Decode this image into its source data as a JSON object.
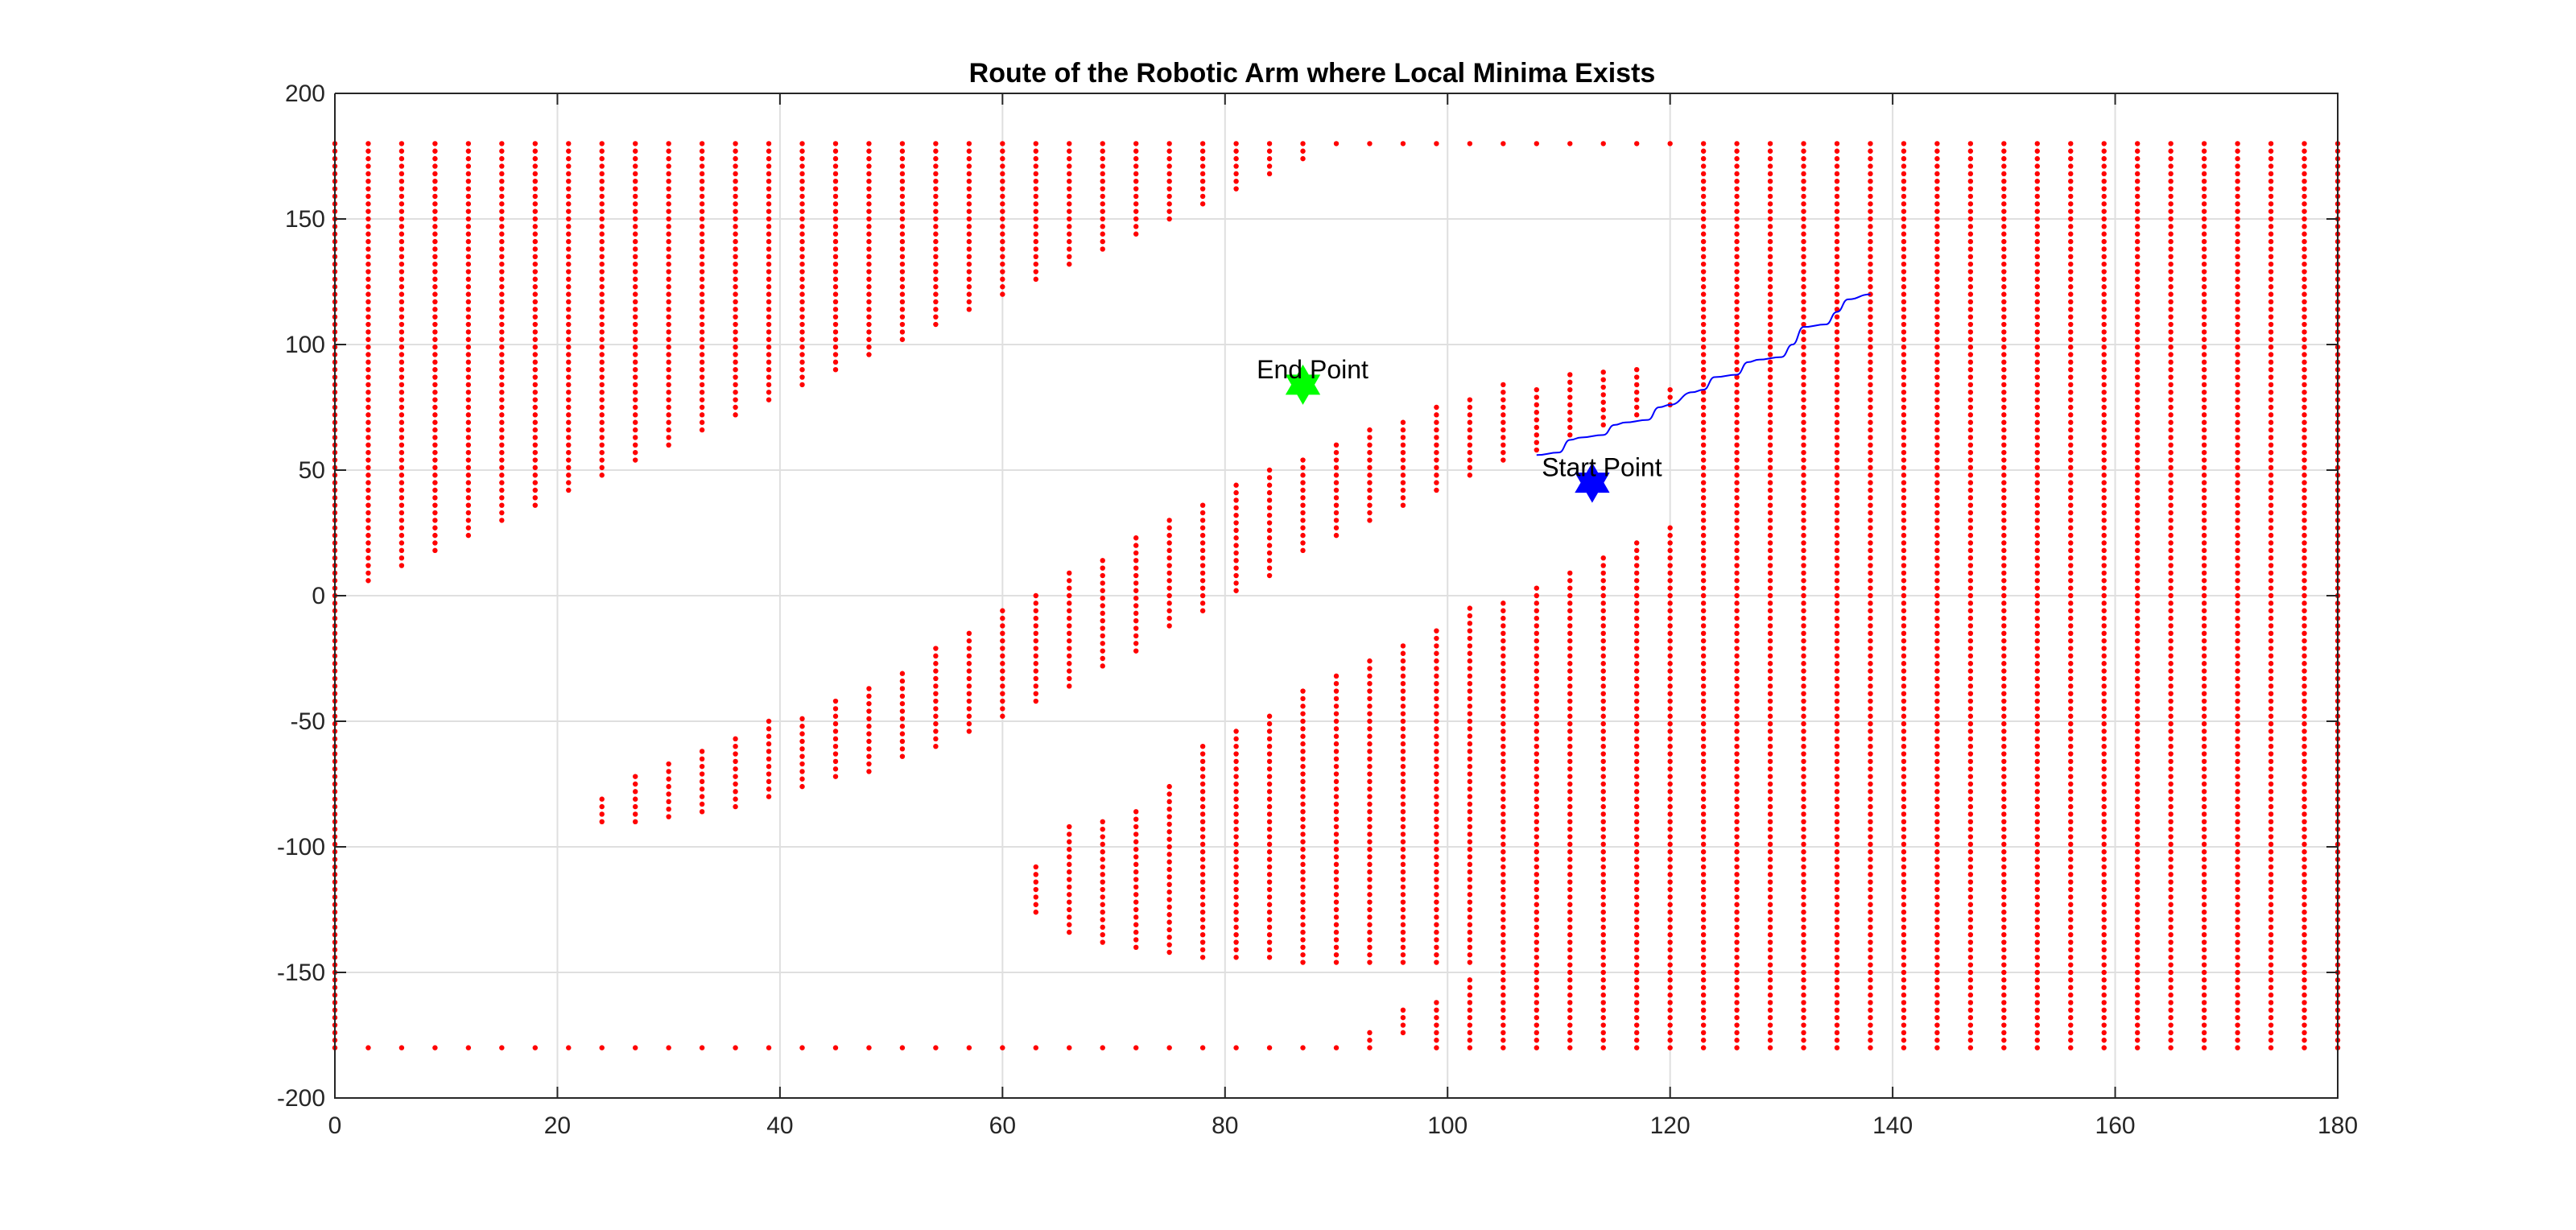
{
  "chart_data": {
    "type": "scatter",
    "title": "Route of the Robotic Arm where Local Minima Exists",
    "xlabel": "",
    "ylabel": "",
    "xlim": [
      0,
      180
    ],
    "ylim": [
      -200,
      200
    ],
    "xticks": [
      0,
      20,
      40,
      60,
      80,
      100,
      120,
      140,
      160,
      180
    ],
    "yticks": [
      -200,
      -150,
      -100,
      -50,
      0,
      50,
      100,
      150,
      200
    ],
    "grid": true,
    "colors": {
      "obstacle": "#ff0000",
      "route": "#0000ff",
      "start_marker": "#0000ff",
      "end_marker": "#00ff00"
    },
    "obstacle_columns": [
      {
        "x": 0,
        "ranges": [
          [
            -180,
            180
          ]
        ]
      },
      {
        "x": 3,
        "ranges": [
          [
            6,
            180
          ],
          [
            -180,
            -180
          ]
        ]
      },
      {
        "x": 6,
        "ranges": [
          [
            12,
            180
          ],
          [
            -180,
            -180
          ]
        ]
      },
      {
        "x": 9,
        "ranges": [
          [
            18,
            180
          ],
          [
            -180,
            -180
          ]
        ]
      },
      {
        "x": 12,
        "ranges": [
          [
            24,
            180
          ],
          [
            -180,
            -180
          ]
        ]
      },
      {
        "x": 15,
        "ranges": [
          [
            30,
            180
          ],
          [
            -180,
            -180
          ]
        ]
      },
      {
        "x": 18,
        "ranges": [
          [
            36,
            180
          ],
          [
            -180,
            -180
          ]
        ]
      },
      {
        "x": 21,
        "ranges": [
          [
            42,
            180
          ],
          [
            -180,
            -180
          ]
        ]
      },
      {
        "x": 24,
        "ranges": [
          [
            48,
            180
          ],
          [
            -90,
            -80
          ],
          [
            -180,
            -180
          ]
        ]
      },
      {
        "x": 27,
        "ranges": [
          [
            54,
            180
          ],
          [
            -90,
            -72
          ],
          [
            -180,
            -180
          ]
        ]
      },
      {
        "x": 30,
        "ranges": [
          [
            60,
            180
          ],
          [
            -88,
            -66
          ],
          [
            -180,
            -180
          ]
        ]
      },
      {
        "x": 33,
        "ranges": [
          [
            66,
            180
          ],
          [
            -86,
            -60
          ],
          [
            -180,
            -180
          ]
        ]
      },
      {
        "x": 36,
        "ranges": [
          [
            72,
            180
          ],
          [
            -84,
            -56
          ],
          [
            -180,
            -180
          ]
        ]
      },
      {
        "x": 39,
        "ranges": [
          [
            78,
            180
          ],
          [
            -80,
            -50
          ],
          [
            -180,
            -180
          ]
        ]
      },
      {
        "x": 42,
        "ranges": [
          [
            84,
            180
          ],
          [
            -76,
            -48
          ],
          [
            -180,
            -180
          ]
        ]
      },
      {
        "x": 45,
        "ranges": [
          [
            90,
            180
          ],
          [
            -72,
            -42
          ],
          [
            -180,
            -180
          ]
        ]
      },
      {
        "x": 48,
        "ranges": [
          [
            96,
            180
          ],
          [
            -70,
            -36
          ],
          [
            -180,
            -180
          ]
        ]
      },
      {
        "x": 51,
        "ranges": [
          [
            102,
            180
          ],
          [
            -64,
            -30
          ],
          [
            -180,
            -180
          ]
        ]
      },
      {
        "x": 54,
        "ranges": [
          [
            108,
            180
          ],
          [
            -60,
            -20
          ],
          [
            -180,
            -180
          ]
        ]
      },
      {
        "x": 57,
        "ranges": [
          [
            114,
            180
          ],
          [
            -54,
            -14
          ],
          [
            -180,
            -180
          ]
        ]
      },
      {
        "x": 60,
        "ranges": [
          [
            120,
            180
          ],
          [
            -48,
            -6
          ],
          [
            -180,
            -180
          ]
        ]
      },
      {
        "x": 63,
        "ranges": [
          [
            126,
            180
          ],
          [
            -42,
            0
          ],
          [
            -126,
            -106
          ],
          [
            -180,
            -180
          ]
        ]
      },
      {
        "x": 66,
        "ranges": [
          [
            132,
            180
          ],
          [
            -36,
            10
          ],
          [
            -134,
            -92
          ],
          [
            -180,
            -180
          ]
        ]
      },
      {
        "x": 69,
        "ranges": [
          [
            138,
            180
          ],
          [
            -28,
            16
          ],
          [
            -138,
            -90
          ],
          [
            -180,
            -180
          ]
        ]
      },
      {
        "x": 72,
        "ranges": [
          [
            144,
            180
          ],
          [
            -22,
            24
          ],
          [
            -140,
            -84
          ],
          [
            -180,
            -180
          ]
        ]
      },
      {
        "x": 75,
        "ranges": [
          [
            150,
            180
          ],
          [
            -12,
            30
          ],
          [
            -142,
            -76
          ],
          [
            -180,
            -180
          ]
        ]
      },
      {
        "x": 78,
        "ranges": [
          [
            156,
            180
          ],
          [
            -6,
            36
          ],
          [
            -144,
            -60
          ],
          [
            -180,
            -180
          ]
        ]
      },
      {
        "x": 81,
        "ranges": [
          [
            162,
            180
          ],
          [
            2,
            46
          ],
          [
            -144,
            -52
          ],
          [
            -180,
            -180
          ]
        ]
      },
      {
        "x": 84,
        "ranges": [
          [
            168,
            180
          ],
          [
            8,
            52
          ],
          [
            -144,
            -48
          ],
          [
            -180,
            -180
          ]
        ]
      },
      {
        "x": 87,
        "ranges": [
          [
            174,
            180
          ],
          [
            18,
            56
          ],
          [
            -146,
            -38
          ],
          [
            -180,
            -180
          ]
        ]
      },
      {
        "x": 90,
        "ranges": [
          [
            180,
            180
          ],
          [
            24,
            60
          ],
          [
            -146,
            -32
          ],
          [
            -180,
            -180
          ]
        ]
      },
      {
        "x": 93,
        "ranges": [
          [
            180,
            180
          ],
          [
            30,
            66
          ],
          [
            -146,
            -26
          ],
          [
            -180,
            -172
          ]
        ]
      },
      {
        "x": 96,
        "ranges": [
          [
            180,
            180
          ],
          [
            36,
            70
          ],
          [
            -146,
            -20
          ],
          [
            -174,
            -164
          ]
        ]
      },
      {
        "x": 99,
        "ranges": [
          [
            180,
            180
          ],
          [
            42,
            76
          ],
          [
            -146,
            -14
          ],
          [
            -180,
            -162
          ]
        ]
      },
      {
        "x": 102,
        "ranges": [
          [
            180,
            180
          ],
          [
            48,
            80
          ],
          [
            -146,
            -4
          ],
          [
            -180,
            -152
          ]
        ]
      },
      {
        "x": 105,
        "ranges": [
          [
            180,
            180
          ],
          [
            54,
            84
          ],
          [
            -180,
            -2
          ]
        ]
      },
      {
        "x": 108,
        "ranges": [
          [
            180,
            180
          ],
          [
            58,
            84
          ],
          [
            -180,
            4
          ]
        ]
      },
      {
        "x": 111,
        "ranges": [
          [
            180,
            180
          ],
          [
            64,
            88
          ],
          [
            -180,
            10
          ]
        ]
      },
      {
        "x": 114,
        "ranges": [
          [
            180,
            180
          ],
          [
            68,
            90
          ],
          [
            -180,
            16
          ]
        ]
      },
      {
        "x": 117,
        "ranges": [
          [
            180,
            180
          ],
          [
            72,
            90
          ],
          [
            -180,
            22
          ]
        ]
      },
      {
        "x": 120,
        "ranges": [
          [
            180,
            180
          ],
          [
            76,
            84
          ],
          [
            -180,
            28
          ]
        ]
      },
      {
        "x": 123,
        "ranges": [
          [
            -180,
            180
          ]
        ]
      },
      {
        "x": 126,
        "ranges": [
          [
            -180,
            180
          ]
        ]
      },
      {
        "x": 129,
        "ranges": [
          [
            -180,
            180
          ]
        ]
      },
      {
        "x": 132,
        "ranges": [
          [
            -180,
            180
          ]
        ]
      },
      {
        "x": 135,
        "ranges": [
          [
            -180,
            180
          ]
        ]
      },
      {
        "x": 138,
        "ranges": [
          [
            -180,
            180
          ]
        ]
      },
      {
        "x": 141,
        "ranges": [
          [
            -180,
            180
          ]
        ]
      },
      {
        "x": 144,
        "ranges": [
          [
            -180,
            180
          ]
        ]
      },
      {
        "x": 147,
        "ranges": [
          [
            -180,
            180
          ]
        ]
      },
      {
        "x": 150,
        "ranges": [
          [
            -180,
            180
          ]
        ]
      },
      {
        "x": 153,
        "ranges": [
          [
            -180,
            180
          ]
        ]
      },
      {
        "x": 156,
        "ranges": [
          [
            -180,
            180
          ]
        ]
      },
      {
        "x": 159,
        "ranges": [
          [
            -180,
            180
          ]
        ]
      },
      {
        "x": 162,
        "ranges": [
          [
            -180,
            180
          ]
        ]
      },
      {
        "x": 165,
        "ranges": [
          [
            -180,
            180
          ]
        ]
      },
      {
        "x": 168,
        "ranges": [
          [
            -180,
            180
          ]
        ]
      },
      {
        "x": 171,
        "ranges": [
          [
            -180,
            180
          ]
        ]
      },
      {
        "x": 174,
        "ranges": [
          [
            -180,
            180
          ]
        ]
      },
      {
        "x": 177,
        "ranges": [
          [
            -180,
            180
          ]
        ]
      },
      {
        "x": 180,
        "ranges": [
          [
            -180,
            180
          ]
        ]
      }
    ],
    "obstacle_step_y": 3,
    "route": {
      "x": [
        108,
        110,
        111,
        112,
        114,
        115,
        116,
        118,
        119,
        120,
        122,
        123,
        124,
        126,
        127,
        128,
        130,
        131,
        132,
        134,
        135,
        136,
        138
      ],
      "y": [
        56,
        57,
        62,
        63,
        64,
        68,
        69,
        70,
        75,
        76,
        81,
        82,
        87,
        88,
        93,
        94,
        95,
        100,
        107,
        108,
        113,
        118,
        120
      ]
    },
    "markers": [
      {
        "label": "Start Point",
        "x": 113,
        "y": 45,
        "shape": "hexagram",
        "color": "#0000ff"
      },
      {
        "label": "End Point",
        "x": 87,
        "y": 84,
        "shape": "hexagram",
        "color": "#00ff00"
      }
    ]
  }
}
